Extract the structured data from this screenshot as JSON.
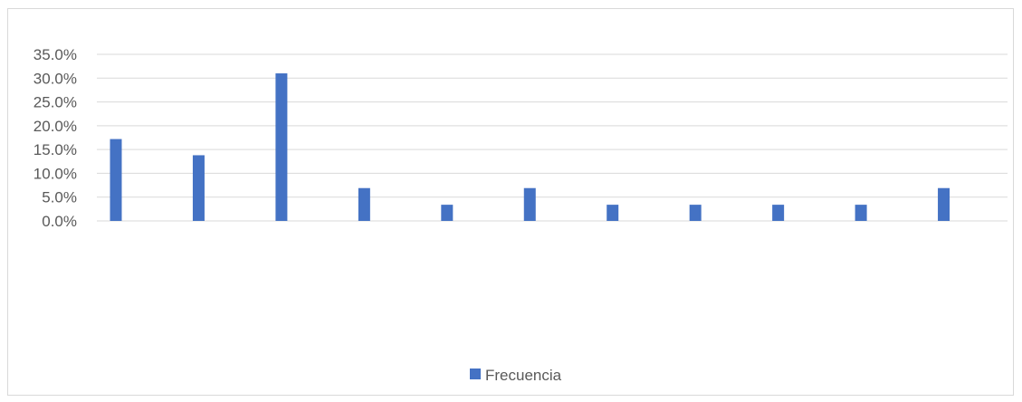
{
  "chart_data": {
    "type": "bar",
    "categories": [
      "",
      "",
      "",
      "",
      "",
      "",
      "",
      "",
      "",
      "",
      ""
    ],
    "series": [
      {
        "name": "Frecuencia",
        "values": [
          17.2,
          13.8,
          31.0,
          6.9,
          3.4,
          6.9,
          3.4,
          3.4,
          3.4,
          3.4,
          6.9
        ]
      }
    ],
    "y_ticks": [
      "0.0%",
      "5.0%",
      "10.0%",
      "15.0%",
      "20.0%",
      "25.0%",
      "30.0%",
      "35.0%"
    ],
    "ylim": [
      0,
      35
    ],
    "grid": true,
    "legend_position": "bottom",
    "colors": {
      "bar": "#4472c4",
      "grid": "#d9d9d9",
      "text": "#595959"
    }
  }
}
